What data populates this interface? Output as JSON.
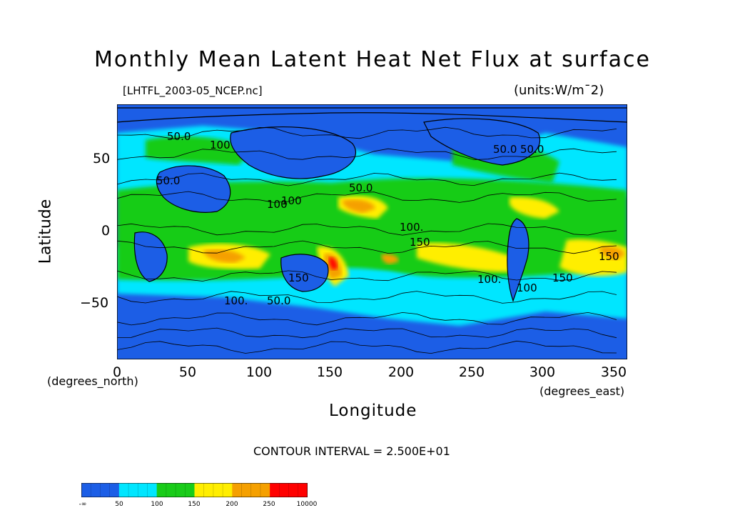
{
  "title": "Monthly Mean Latent Heat Net Flux at surface",
  "file_label": "[LHTFL_2003-05_NCEP.nc]",
  "units_label": "(units:W/m¯2)",
  "axes": {
    "ylabel": "Latitude",
    "xlabel": "Longitude",
    "y_unit": "(degrees_north)",
    "x_unit": "(degrees_east)",
    "y_ticks": [
      "50",
      "0",
      "−50"
    ],
    "x_ticks": [
      "0",
      "50",
      "100",
      "150",
      "200",
      "250",
      "300",
      "350"
    ]
  },
  "contour_interval": "CONTOUR INTERVAL = 2.500E+01",
  "contour_labels": [
    "50.0",
    "100",
    "50.0",
    "100",
    "50.0",
    "100",
    "100.",
    "150",
    "150",
    "100.",
    "50.0",
    "100.",
    "150",
    "150",
    "100",
    "50.0",
    "50.0"
  ],
  "colorbar": {
    "labels": [
      "-∞",
      "50",
      "100",
      "150",
      "200",
      "250",
      "10000"
    ],
    "colors": [
      "#1c5ee6",
      "#00e6ff",
      "#19cc19",
      "#ffee00",
      "#f5a000",
      "#ff0000"
    ]
  },
  "chart_data": {
    "type": "heatmap",
    "title": "Monthly Mean Latent Heat Net Flux at surface",
    "xlabel": "Longitude",
    "ylabel": "Latitude",
    "xlim": [
      0,
      360
    ],
    "ylim": [
      -90,
      90
    ],
    "units": "W/m¯2",
    "levels": [
      50,
      100,
      150,
      200,
      250
    ],
    "contour_interval": 25
  }
}
